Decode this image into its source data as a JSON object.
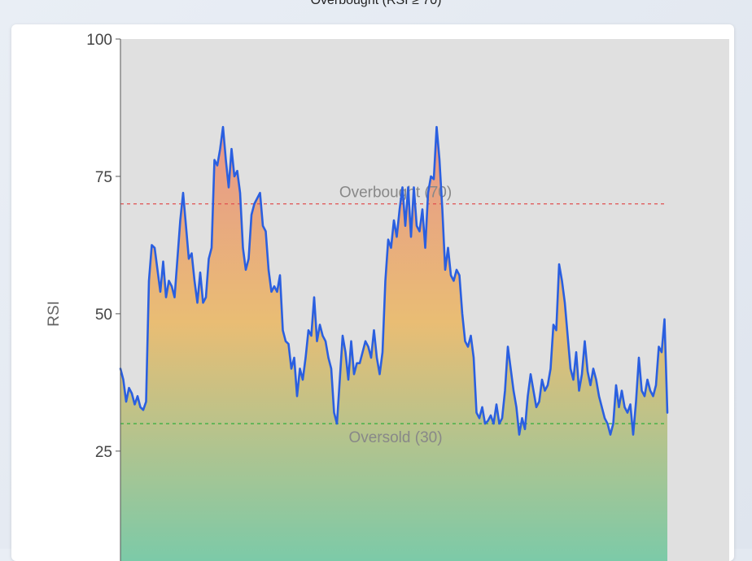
{
  "header": {
    "note": "Overbought (RSI ≥ 70)"
  },
  "colors": {
    "plot_bg": "#e0e0e0",
    "line": "#2a5fe0",
    "overbought_line": "#e05050",
    "oversold_line": "#3cb043",
    "fill_top": "#e8968a",
    "fill_mid": "#e9bd74",
    "fill_bottom": "#7ccaa8"
  },
  "chart_data": {
    "type": "area",
    "ylabel": "RSI",
    "xlabel": "",
    "ylim": [
      5,
      100
    ],
    "yticks": [
      25,
      50,
      75,
      100
    ],
    "grid": false,
    "reference_lines": [
      {
        "value": 70,
        "label": "Overbought (70)",
        "style": "dashed",
        "color": "#e05050"
      },
      {
        "value": 30,
        "label": "Oversold (30)",
        "style": "dashed",
        "color": "#3cb043"
      }
    ],
    "series": [
      {
        "values": [
          40,
          38,
          34,
          36.5,
          35.5,
          33.5,
          35,
          33,
          32.5,
          34,
          56,
          62.5,
          62,
          58,
          54,
          59.5,
          53,
          56,
          55,
          53,
          60,
          67,
          72,
          66,
          60,
          61,
          56,
          52,
          57.5,
          52,
          53,
          60,
          62,
          78,
          77,
          80,
          84,
          78,
          73,
          80,
          75,
          76,
          72,
          62,
          58,
          60,
          68,
          70,
          71,
          72,
          66,
          65,
          58,
          54,
          55,
          54,
          57,
          47,
          45,
          44.5,
          40,
          42,
          35,
          40,
          38,
          42,
          47,
          46,
          53,
          45,
          48,
          46,
          45,
          42,
          40,
          32,
          30,
          38,
          46,
          43,
          38,
          45,
          39,
          41,
          41,
          43,
          45,
          44,
          42,
          47,
          42,
          39,
          43,
          56,
          63.5,
          62,
          67,
          64,
          69,
          73,
          66,
          73,
          64,
          73,
          66,
          65,
          69,
          62,
          72,
          75,
          74.5,
          84,
          78,
          69,
          58,
          62,
          57,
          56,
          58,
          57,
          50,
          45,
          44,
          46,
          42,
          32,
          31,
          33,
          30,
          30.5,
          31.5,
          30,
          33.5,
          30,
          31,
          36,
          44,
          40,
          36,
          33,
          28,
          31,
          29,
          35,
          39,
          36,
          33,
          34,
          38,
          36,
          37,
          40,
          48,
          47,
          59,
          56,
          52,
          46,
          40,
          38,
          43,
          36,
          39,
          45,
          39.5,
          37,
          40,
          38,
          35,
          33,
          31,
          30,
          28,
          30,
          37,
          33,
          36,
          33,
          32,
          33.5,
          28,
          34,
          42,
          36,
          35,
          38,
          36,
          35,
          37,
          44,
          43,
          49,
          32
        ]
      }
    ]
  }
}
